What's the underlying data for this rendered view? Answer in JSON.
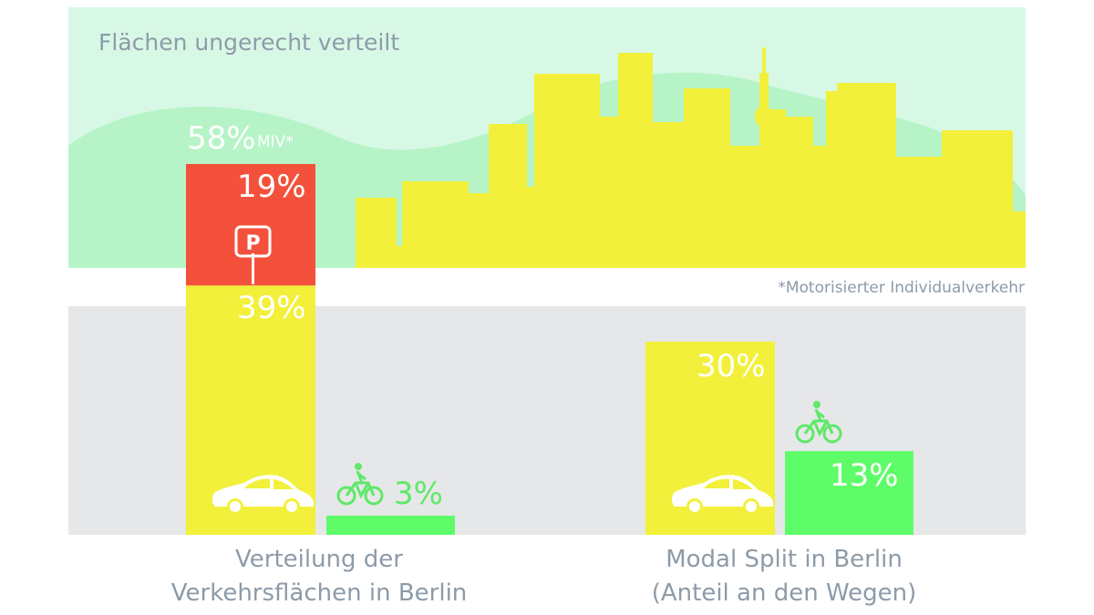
{
  "title": "Flächen ungerecht verteilt",
  "footnote": "*Motorisierter Individualverkehr",
  "miv_total": {
    "value": "58%",
    "label": "MIV*"
  },
  "parking_sign": "P",
  "colors": {
    "car": "#f2f03a",
    "parking": "#f4513c",
    "bike": "#5ffc6a",
    "hill_background": "#d8f8e6",
    "hills": "#b6f4c8",
    "plot_background": "#e6e7e8",
    "text_gray": "#8d9ba8"
  },
  "icons": {
    "car": "car-icon",
    "bike": "bicycle-icon",
    "parking": "parking-sign-icon",
    "skyline": "city-skyline-icon"
  },
  "chart_data": [
    {
      "type": "bar",
      "caption_lines": [
        "Verteilung der",
        "Verkehrsflächen in Berlin"
      ],
      "bars": [
        {
          "mode": "car",
          "value": 58,
          "segments": [
            {
              "label": "39%",
              "value": 39,
              "kind": "car"
            },
            {
              "label": "19%",
              "value": 19,
              "kind": "parking"
            }
          ]
        },
        {
          "mode": "bike",
          "value": 3,
          "label": "3%"
        }
      ]
    },
    {
      "type": "bar",
      "caption_lines": [
        "Modal Split in Berlin",
        "(Anteil an den Wegen)"
      ],
      "bars": [
        {
          "mode": "car",
          "value": 30,
          "label": "30%"
        },
        {
          "mode": "bike",
          "value": 13,
          "label": "13%"
        }
      ]
    }
  ]
}
